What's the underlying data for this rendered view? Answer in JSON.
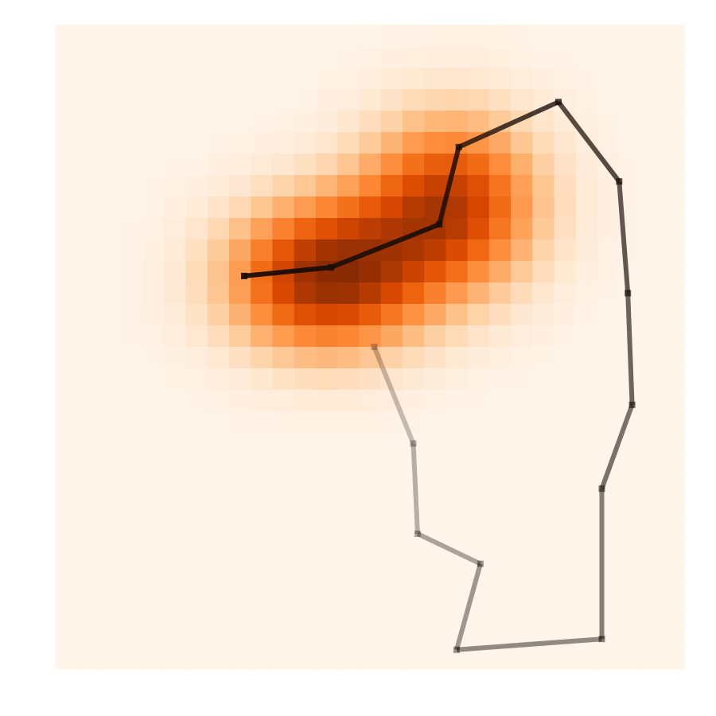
{
  "chart_data": {
    "type": "heatmap",
    "title": "",
    "xlabel": "",
    "ylabel": "",
    "grid": false,
    "axes_visible": false,
    "heatmap": {
      "colormap": "Oranges",
      "colors": {
        "low": "#fff5eb",
        "high": "#7f2704"
      },
      "shape": [
        30,
        29
      ],
      "xlim": [
        0,
        29
      ],
      "ylim": [
        0,
        30
      ],
      "components": [
        {
          "cx": 12.4,
          "cy": 11.8,
          "sx": 3.3,
          "sy": 2.6,
          "amp": 0.9
        },
        {
          "cx": 18.3,
          "cy": 8.3,
          "sx": 3.0,
          "sy": 3.0,
          "amp": 0.78
        }
      ]
    },
    "series": [
      {
        "type": "line",
        "color": "#1a0d06",
        "alpha_gradient": [
          0.95,
          0.25
        ],
        "x": [
          8.7,
          12.7,
          17.7,
          18.6,
          23.2,
          26.0,
          26.4,
          26.6,
          25.2,
          25.2,
          18.5,
          19.6,
          16.7,
          16.5,
          14.7
        ],
        "y": [
          11.7,
          11.3,
          9.3,
          5.7,
          3.6,
          7.3,
          12.5,
          17.7,
          21.6,
          28.6,
          29.1,
          25.1,
          23.7,
          19.5,
          15.0
        ]
      }
    ]
  }
}
